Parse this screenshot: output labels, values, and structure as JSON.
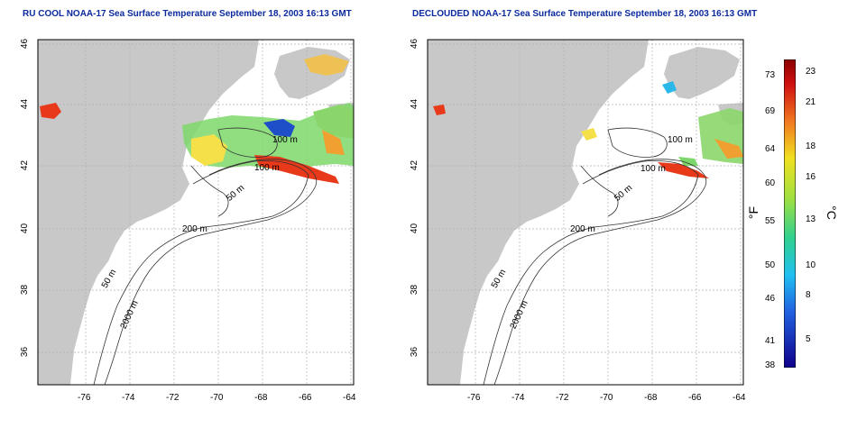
{
  "titles": {
    "left": "RU COOL NOAA-17 Sea Surface Temperature September 18, 2003 16:13 GMT",
    "right": "DECLOUDED NOAA-17 Sea Surface Temperature September 18, 2003 16:13 GMT"
  },
  "axes": {
    "x_ticks": [
      "-76",
      "-74",
      "-72",
      "-70",
      "-68",
      "-66",
      "-64"
    ],
    "y_ticks": [
      "46",
      "44",
      "42",
      "40",
      "38",
      "36"
    ]
  },
  "contours": {
    "label_50_north": "50 m",
    "label_100_a": "100 m",
    "label_100_b": "100 m",
    "label_200": "200 m",
    "label_50_south": "50 m",
    "label_2000": "2000 m"
  },
  "colorbar": {
    "fahrenheit_labels": [
      "73",
      "69",
      "64",
      "60",
      "55",
      "50",
      "46",
      "41",
      "38"
    ],
    "celsius_labels": [
      "23",
      "21",
      "18",
      "16",
      "13",
      "10",
      "8",
      "5"
    ],
    "unit_f": "°F",
    "unit_c": "°C",
    "range_c": [
      3.3,
      23.3
    ]
  },
  "colors": {
    "land": "#c8c8c8",
    "ocean": "#ffffff",
    "title": "#0b2a9e",
    "contour": "#333333",
    "grid": "#b0b0b0"
  }
}
